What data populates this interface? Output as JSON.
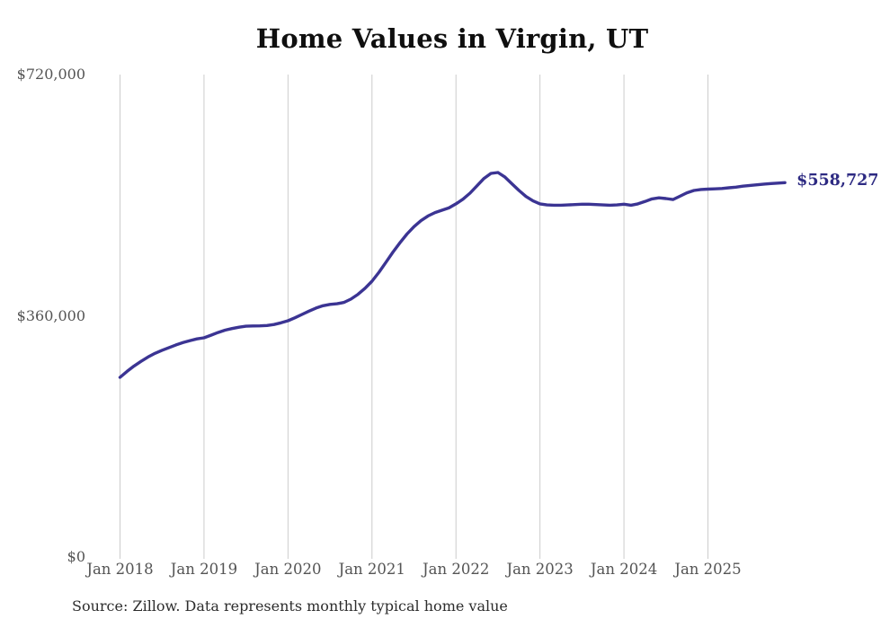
{
  "page": {
    "title": "Home Values in Virgin, UT",
    "source_note": "Source: Zillow. Data represents monthly typical home value"
  },
  "chart_data": {
    "type": "line",
    "title": "Home Values in Virgin, UT",
    "series_name": "Monthly typical home value",
    "unit": "USD",
    "frequency": "monthly",
    "start_month": "2018-01",
    "end_month": "2025-12",
    "ylim": [
      0,
      720000
    ],
    "grid": "vertical-only",
    "legend": "none",
    "line_color": "#3b3493",
    "grid_color": "#cccccc",
    "tick_label_color": "#545454",
    "end_label": "$558,727",
    "end_label_color": "#2d2a82",
    "latest_value": 558727,
    "y_ticks": [
      {
        "label": "$0",
        "value": 0
      },
      {
        "label": "$360,000",
        "value": 360000
      },
      {
        "label": "$720,000",
        "value": 720000
      }
    ],
    "x_ticks": [
      {
        "label": "Jan 2018",
        "month_index": 0
      },
      {
        "label": "Jan 2019",
        "month_index": 12
      },
      {
        "label": "Jan 2020",
        "month_index": 24
      },
      {
        "label": "Jan 2021",
        "month_index": 36
      },
      {
        "label": "Jan 2022",
        "month_index": 48
      },
      {
        "label": "Jan 2023",
        "month_index": 60
      },
      {
        "label": "Jan 2024",
        "month_index": 72
      },
      {
        "label": "Jan 2025",
        "month_index": 84
      }
    ],
    "monthly_values": [
      268200,
      277000,
      285000,
      292000,
      298500,
      304000,
      308500,
      312500,
      316500,
      320000,
      323000,
      325500,
      327200,
      331000,
      335000,
      338500,
      341000,
      343000,
      344500,
      344800,
      345000,
      345500,
      347000,
      349500,
      352600,
      357000,
      362000,
      367000,
      371500,
      375000,
      377000,
      378000,
      380000,
      385000,
      392000,
      401000,
      411600,
      425000,
      440000,
      455000,
      469000,
      482000,
      493000,
      502000,
      509000,
      514000,
      517500,
      521000,
      527000,
      534000,
      543000,
      554000,
      565000,
      572500,
      573900,
      567000,
      557000,
      547000,
      538000,
      531500,
      527000,
      525500,
      525000,
      525000,
      525500,
      526000,
      526500,
      526500,
      526000,
      525500,
      525000,
      525500,
      526500,
      525000,
      527000,
      530500,
      534500,
      536000,
      535000,
      533500,
      538500,
      543500,
      547000,
      548500,
      549000,
      549500,
      550000,
      551000,
      552000,
      553500,
      554500,
      555500,
      556500,
      557300,
      558100,
      558727
    ]
  }
}
